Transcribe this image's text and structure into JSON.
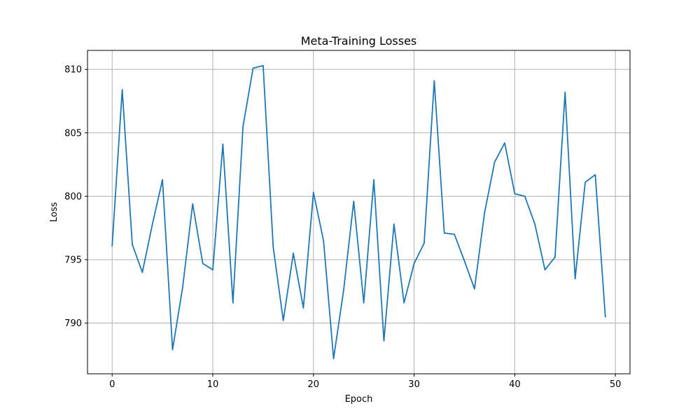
{
  "chart_data": {
    "type": "line",
    "title": "Meta-Training Losses",
    "xlabel": "Epoch",
    "ylabel": "Loss",
    "xlim": [
      -2.45,
      51.45
    ],
    "ylim": [
      786.0,
      811.5
    ],
    "xticks": [
      0,
      10,
      20,
      30,
      40,
      50
    ],
    "yticks": [
      790,
      795,
      800,
      805,
      810
    ],
    "grid": true,
    "series": [
      {
        "color": "#1f77b4",
        "x": [
          0,
          1,
          2,
          3,
          4,
          5,
          6,
          7,
          8,
          9,
          10,
          11,
          12,
          13,
          14,
          15,
          16,
          17,
          18,
          19,
          20,
          21,
          22,
          23,
          24,
          25,
          26,
          27,
          28,
          29,
          30,
          31,
          32,
          33,
          34,
          35,
          36,
          37,
          38,
          39,
          40,
          41,
          42,
          43,
          44,
          45,
          46,
          47,
          48,
          49
        ],
        "values": [
          796.1,
          808.4,
          796.2,
          794.0,
          797.8,
          801.3,
          787.9,
          792.8,
          799.4,
          794.7,
          794.2,
          804.1,
          791.6,
          805.5,
          810.1,
          810.3,
          796.0,
          790.2,
          795.5,
          791.2,
          800.3,
          796.5,
          787.2,
          792.6,
          799.6,
          791.6,
          801.3,
          788.6,
          797.8,
          791.6,
          794.7,
          796.3,
          809.1,
          797.1,
          797.0,
          794.9,
          792.7,
          798.7,
          802.7,
          804.2,
          800.2,
          800.0,
          797.8,
          794.2,
          795.2,
          808.2,
          793.5,
          801.1,
          801.7,
          790.5
        ]
      }
    ]
  }
}
